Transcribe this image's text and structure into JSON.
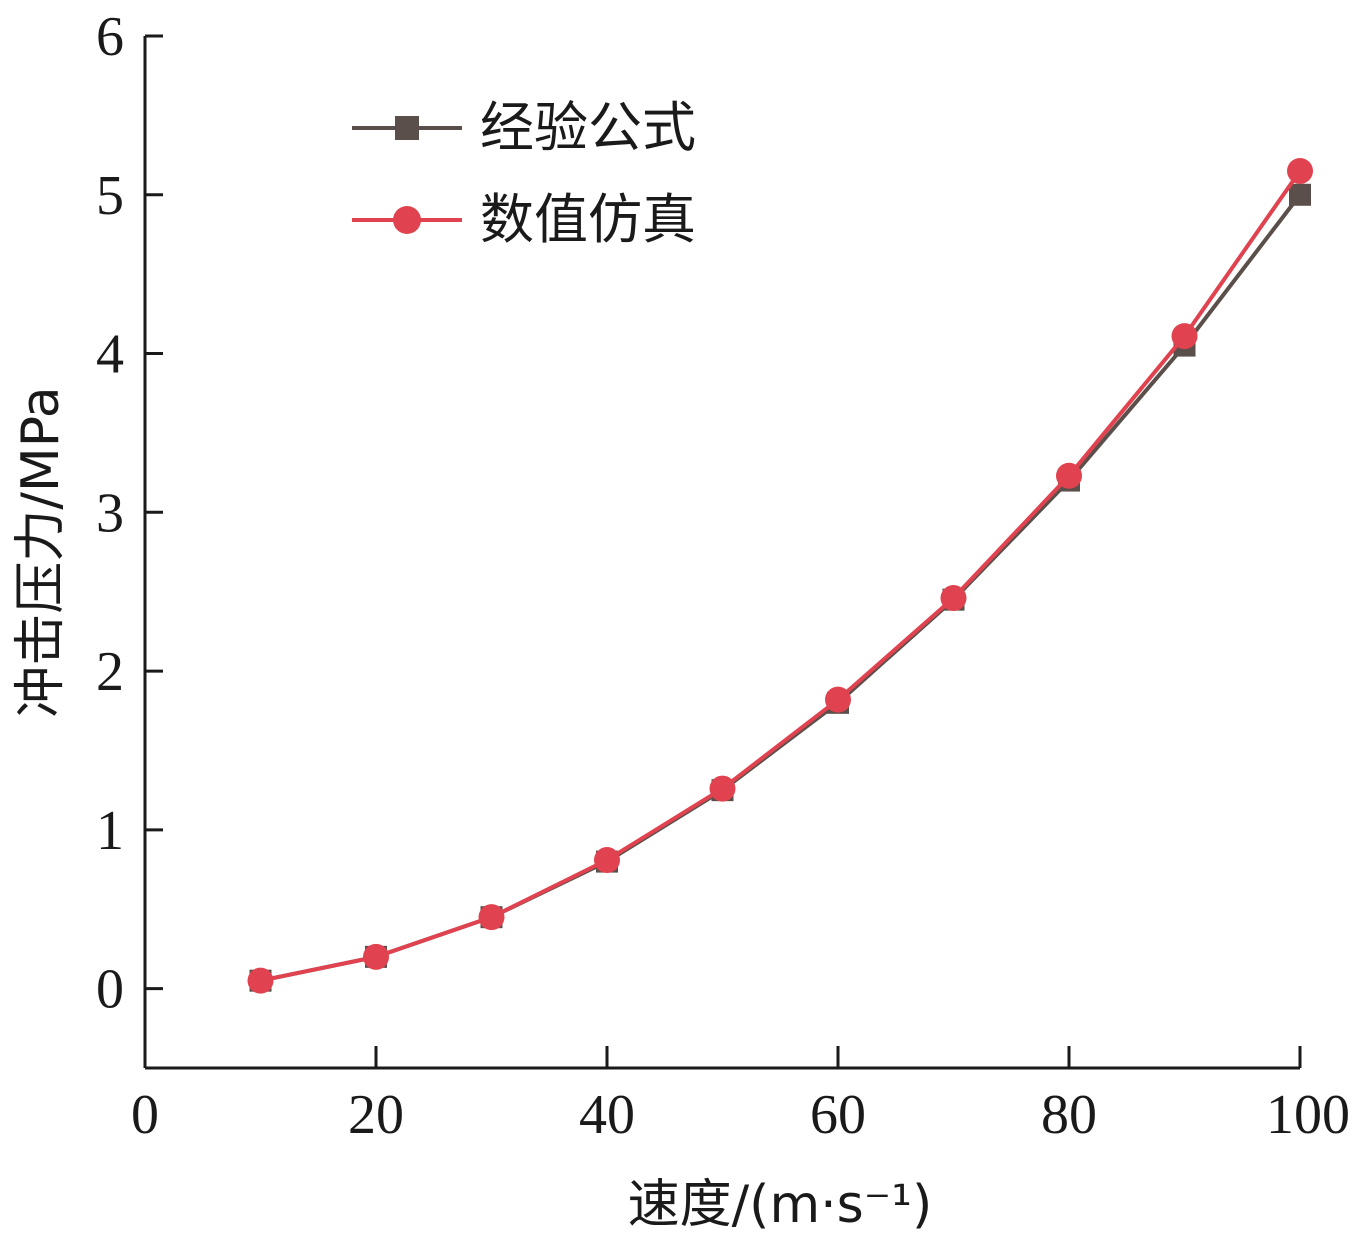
{
  "chart_data": {
    "type": "line",
    "xlabel": "速度/(m·s⁻¹)",
    "ylabel": "冲击压力/MPa",
    "xlim": [
      0,
      100
    ],
    "ylim": [
      -0.5,
      6
    ],
    "xticks": [
      0,
      20,
      40,
      60,
      80,
      100
    ],
    "yticks": [
      0,
      1,
      2,
      3,
      4,
      5,
      6
    ],
    "x": [
      10,
      20,
      30,
      40,
      50,
      60,
      70,
      80,
      90,
      100
    ],
    "grid": false,
    "legend_position": "top-left",
    "series": [
      {
        "name": "经验公式",
        "color": "#5a4f4a",
        "marker": "square",
        "values": [
          0.05,
          0.2,
          0.45,
          0.8,
          1.25,
          1.8,
          2.45,
          3.2,
          4.05,
          5.0
        ]
      },
      {
        "name": "数值仿真",
        "color": "#e0434f",
        "marker": "circle",
        "values": [
          0.05,
          0.2,
          0.45,
          0.81,
          1.26,
          1.82,
          2.46,
          3.23,
          4.11,
          5.15
        ]
      }
    ]
  }
}
